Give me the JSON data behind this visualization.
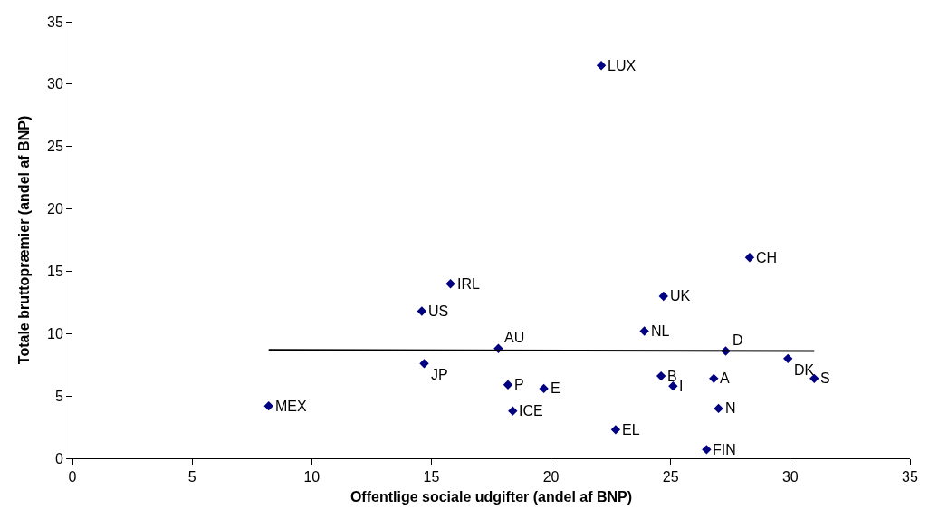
{
  "chart_data": {
    "type": "scatter",
    "xlabel": "Offentlige sociale udgifter (andel af BNP)",
    "ylabel": "Totale bruttopræmier (andel af BNP)",
    "xlim": [
      0,
      35
    ],
    "xticks": [
      0,
      5,
      10,
      15,
      20,
      25,
      30,
      35
    ],
    "ylim": [
      0,
      35
    ],
    "yticks": [
      0,
      5,
      10,
      15,
      20,
      25,
      30,
      35
    ],
    "grid": false,
    "legend": false,
    "marker": "diamond",
    "series": [
      {
        "color": "#000080",
        "x": [
          8.2,
          14.6,
          15.8,
          14.7,
          17.8,
          18.2,
          19.7,
          18.4,
          28.3,
          24.7,
          23.9,
          27.3,
          29.9,
          24.6,
          26.8,
          31.0,
          25.1,
          27.0,
          22.7,
          26.5,
          22.1
        ],
        "values": [
          4.2,
          11.8,
          14.0,
          7.6,
          8.8,
          5.9,
          5.6,
          3.8,
          16.1,
          13.0,
          10.2,
          8.6,
          8.0,
          6.6,
          6.4,
          6.4,
          5.8,
          4.0,
          2.3,
          0.7,
          31.5
        ]
      },
      {
        "type": "line",
        "color": "#000000",
        "marker": "none",
        "x": [
          8.2,
          31.0
        ],
        "values": [
          8.7,
          8.6
        ]
      }
    ],
    "annotations": [
      {
        "text": "MEX",
        "x": 8.2,
        "y": 4.2
      },
      {
        "text": "US",
        "x": 14.6,
        "y": 11.8
      },
      {
        "text": "IRL",
        "x": 15.8,
        "y": 14.0
      },
      {
        "text": "JP",
        "x": 14.7,
        "y": 7.6
      },
      {
        "text": "AU",
        "x": 17.8,
        "y": 8.8
      },
      {
        "text": "P",
        "x": 18.2,
        "y": 5.9
      },
      {
        "text": "E",
        "x": 19.7,
        "y": 5.6
      },
      {
        "text": "ICE",
        "x": 18.4,
        "y": 3.8
      },
      {
        "text": "CH",
        "x": 28.3,
        "y": 16.1
      },
      {
        "text": "UK",
        "x": 24.7,
        "y": 13.0
      },
      {
        "text": "NL",
        "x": 23.9,
        "y": 10.2
      },
      {
        "text": "D",
        "x": 27.3,
        "y": 8.6
      },
      {
        "text": "DK",
        "x": 29.9,
        "y": 8.0
      },
      {
        "text": "B",
        "x": 24.6,
        "y": 6.6
      },
      {
        "text": "A",
        "x": 26.8,
        "y": 6.4
      },
      {
        "text": "S",
        "x": 31.0,
        "y": 6.4
      },
      {
        "text": "I",
        "x": 25.1,
        "y": 5.8
      },
      {
        "text": "N",
        "x": 27.0,
        "y": 4.0
      },
      {
        "text": "EL",
        "x": 22.7,
        "y": 2.3
      },
      {
        "text": "FIN",
        "x": 26.5,
        "y": 0.7
      },
      {
        "text": "LUX",
        "x": 22.1,
        "y": 31.5
      }
    ]
  }
}
